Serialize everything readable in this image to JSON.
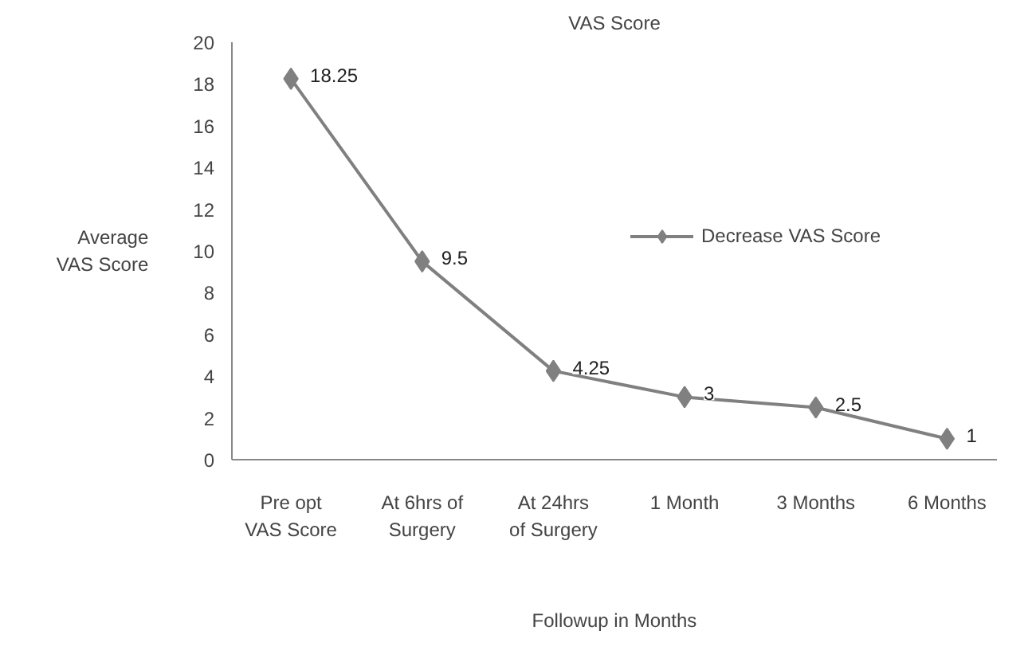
{
  "chart_data": {
    "type": "line",
    "title": "VAS Score",
    "xlabel": "Followup in Months",
    "ylabel": "Average\nVAS Score",
    "categories": [
      "Pre opt\nVAS Score",
      "At 6hrs of\nSurgery",
      "At 24hrs\nof Surgery",
      "1 Month",
      "3 Months",
      "6 Months"
    ],
    "series": [
      {
        "name": "Decrease VAS Score",
        "color": "#808080",
        "values": [
          18.25,
          9.5,
          4.25,
          3,
          2.5,
          1
        ]
      }
    ],
    "ylim": [
      0,
      20
    ],
    "yticks": [
      0,
      2,
      4,
      6,
      8,
      10,
      12,
      14,
      16,
      18,
      20
    ],
    "grid": false,
    "legend": "right",
    "marker": "diamond",
    "line_style": "solid",
    "data_labels": true
  }
}
